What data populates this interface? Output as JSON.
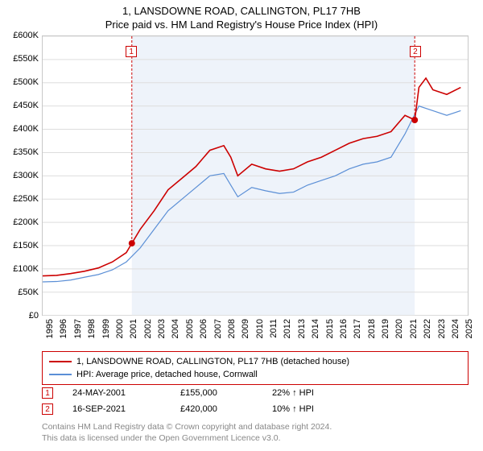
{
  "title": "1, LANSDOWNE ROAD, CALLINGTON, PL17 7HB",
  "subtitle": "Price paid vs. HM Land Registry's House Price Index (HPI)",
  "chart": {
    "type": "line",
    "background_color": "#ffffff",
    "plot_band_color": "#eef3fa",
    "grid_color": "#dddddd",
    "border_color": "#c8c8c8",
    "x_years": [
      1995,
      1996,
      1997,
      1998,
      1999,
      2000,
      2001,
      2002,
      2003,
      2004,
      2005,
      2006,
      2007,
      2008,
      2009,
      2010,
      2011,
      2012,
      2013,
      2014,
      2015,
      2016,
      2017,
      2018,
      2019,
      2020,
      2021,
      2022,
      2023,
      2024,
      2025
    ],
    "x_min": 1995,
    "x_max": 2025.5,
    "y_ticks": [
      0,
      50000,
      100000,
      150000,
      200000,
      250000,
      300000,
      350000,
      400000,
      450000,
      500000,
      550000,
      600000
    ],
    "y_tick_labels": [
      "£0",
      "£50K",
      "£100K",
      "£150K",
      "£200K",
      "£250K",
      "£300K",
      "£350K",
      "£400K",
      "£450K",
      "£500K",
      "£550K",
      "£600K"
    ],
    "y_min": 0,
    "y_max": 600000,
    "plot_band_start": 2001.4,
    "plot_band_end": 2021.7,
    "series": [
      {
        "name": "1, LANSDOWNE ROAD, CALLINGTON, PL17 7HB (detached house)",
        "color": "#cc0000",
        "line_width": 1.6,
        "points": [
          [
            1995,
            85000
          ],
          [
            1996,
            86000
          ],
          [
            1997,
            90000
          ],
          [
            1998,
            95000
          ],
          [
            1999,
            102000
          ],
          [
            2000,
            115000
          ],
          [
            2001,
            135000
          ],
          [
            2001.4,
            155000
          ],
          [
            2002,
            185000
          ],
          [
            2003,
            225000
          ],
          [
            2004,
            270000
          ],
          [
            2005,
            295000
          ],
          [
            2006,
            320000
          ],
          [
            2007,
            355000
          ],
          [
            2008,
            365000
          ],
          [
            2008.5,
            340000
          ],
          [
            2009,
            300000
          ],
          [
            2010,
            325000
          ],
          [
            2011,
            315000
          ],
          [
            2012,
            310000
          ],
          [
            2013,
            315000
          ],
          [
            2014,
            330000
          ],
          [
            2015,
            340000
          ],
          [
            2016,
            355000
          ],
          [
            2017,
            370000
          ],
          [
            2018,
            380000
          ],
          [
            2019,
            385000
          ],
          [
            2020,
            395000
          ],
          [
            2021,
            430000
          ],
          [
            2021.7,
            420000
          ],
          [
            2022,
            490000
          ],
          [
            2022.5,
            510000
          ],
          [
            2023,
            485000
          ],
          [
            2024,
            475000
          ],
          [
            2025,
            490000
          ]
        ]
      },
      {
        "name": "HPI: Average price, detached house, Cornwall",
        "color": "#5b8fd6",
        "line_width": 1.2,
        "points": [
          [
            1995,
            72000
          ],
          [
            1996,
            73000
          ],
          [
            1997,
            76000
          ],
          [
            1998,
            82000
          ],
          [
            1999,
            88000
          ],
          [
            2000,
            98000
          ],
          [
            2001,
            115000
          ],
          [
            2002,
            145000
          ],
          [
            2003,
            185000
          ],
          [
            2004,
            225000
          ],
          [
            2005,
            250000
          ],
          [
            2006,
            275000
          ],
          [
            2007,
            300000
          ],
          [
            2008,
            305000
          ],
          [
            2008.5,
            280000
          ],
          [
            2009,
            255000
          ],
          [
            2010,
            275000
          ],
          [
            2011,
            268000
          ],
          [
            2012,
            262000
          ],
          [
            2013,
            265000
          ],
          [
            2014,
            280000
          ],
          [
            2015,
            290000
          ],
          [
            2016,
            300000
          ],
          [
            2017,
            315000
          ],
          [
            2018,
            325000
          ],
          [
            2019,
            330000
          ],
          [
            2020,
            340000
          ],
          [
            2021,
            390000
          ],
          [
            2022,
            450000
          ],
          [
            2023,
            440000
          ],
          [
            2024,
            430000
          ],
          [
            2025,
            440000
          ]
        ]
      }
    ],
    "sale_markers": [
      {
        "n": "1",
        "x": 2001.4,
        "y": 155000,
        "label_y": 565000
      },
      {
        "n": "2",
        "x": 2021.7,
        "y": 420000,
        "label_y": 565000
      }
    ],
    "marker_dot_color": "#cc0000",
    "marker_dot_radius": 4
  },
  "legend": {
    "border_color": "#cc0000",
    "items": [
      {
        "color": "#cc0000",
        "label": "1, LANSDOWNE ROAD, CALLINGTON, PL17 7HB (detached house)"
      },
      {
        "color": "#5b8fd6",
        "label": "HPI: Average price, detached house, Cornwall"
      }
    ]
  },
  "sales": [
    {
      "n": "1",
      "date": "24-MAY-2001",
      "price": "£155,000",
      "delta": "22% ↑ HPI"
    },
    {
      "n": "2",
      "date": "16-SEP-2021",
      "price": "£420,000",
      "delta": "10% ↑ HPI"
    }
  ],
  "footer_line1": "Contains HM Land Registry data © Crown copyright and database right 2024.",
  "footer_line2": "This data is licensed under the Open Government Licence v3.0."
}
